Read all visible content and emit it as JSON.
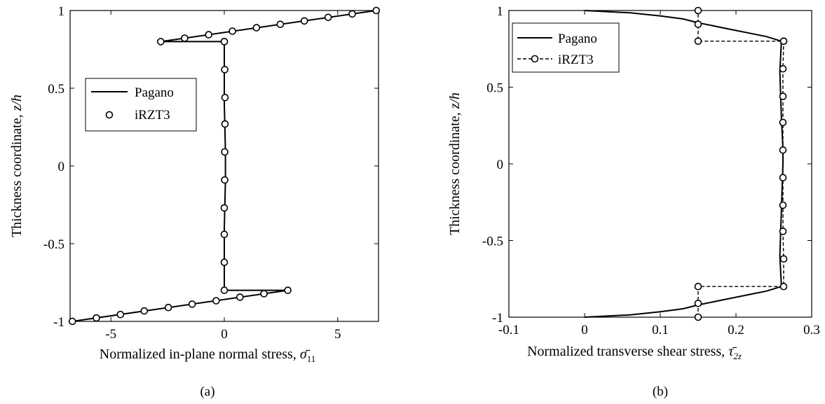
{
  "chart_data": [
    {
      "type": "line",
      "panel_caption": "(a)",
      "xlabel": "Normalized in-plane normal stress,",
      "xlabel_symbol": "σ̄",
      "xlabel_subscript": "11",
      "ylabel": "Thickness coordinate,",
      "ylabel_symbol": "z/h",
      "xlim": [
        -6.8,
        6.8
      ],
      "ylim": [
        -1,
        1
      ],
      "xticks": [
        -5,
        0,
        5
      ],
      "xtick_labels": [
        "-5",
        "0",
        "5"
      ],
      "yticks": [
        -1,
        -0.5,
        0,
        0.5,
        1
      ],
      "ytick_labels": [
        "-1",
        "-0.5",
        "0",
        "0.5",
        "1"
      ],
      "legend": {
        "position": "upper-left",
        "entries": [
          "Pagano",
          "iRZT3"
        ]
      },
      "series": [
        {
          "name": "Pagano",
          "style": "solid",
          "x": [
            -6.7,
            2.8,
            0.0,
            0.0,
            0.05,
            0.05,
            0.0,
            0.0,
            -2.8,
            6.7
          ],
          "y": [
            -1,
            -0.8,
            -0.8,
            -0.4,
            -0.1,
            0.1,
            0.4,
            0.8,
            0.8,
            1
          ]
        },
        {
          "name": "iRZT3",
          "style": "circles",
          "x": [
            -6.7,
            -5.64,
            -4.58,
            -3.53,
            -2.47,
            -1.42,
            -0.36,
            0.69,
            1.75,
            2.8,
            0.0,
            0.0,
            0.0,
            0.0,
            0.02,
            0.02,
            0.03,
            0.03,
            0.02,
            0.0,
            0.0,
            -2.8,
            -1.75,
            -0.69,
            0.36,
            1.42,
            2.47,
            3.53,
            4.58,
            5.64,
            6.7
          ],
          "y": [
            -1,
            -0.978,
            -0.956,
            -0.933,
            -0.911,
            -0.889,
            -0.867,
            -0.844,
            -0.822,
            -0.8,
            -0.8,
            -0.62,
            -0.44,
            -0.27,
            -0.09,
            0.09,
            0.27,
            0.44,
            0.62,
            0.8,
            0.8,
            0.8,
            0.822,
            0.844,
            0.867,
            0.889,
            0.911,
            0.933,
            0.956,
            0.978,
            1
          ]
        }
      ]
    },
    {
      "type": "line",
      "panel_caption": "(b)",
      "xlabel": "Normalized transverse shear stress,",
      "xlabel_symbol": "τ̄",
      "xlabel_subscript": "2z",
      "ylabel": "Thickness coordinate,",
      "ylabel_symbol": "z/h",
      "xlim": [
        -0.1,
        0.3
      ],
      "ylim": [
        -1,
        1
      ],
      "xticks": [
        -0.1,
        0,
        0.1,
        0.2,
        0.3
      ],
      "xtick_labels": [
        "-0.1",
        "0",
        "0.1",
        "0.2",
        "0.3"
      ],
      "yticks": [
        -1,
        -0.5,
        0,
        0.5,
        1
      ],
      "ytick_labels": [
        "-1",
        "-0.5",
        "0",
        "0.5",
        "1"
      ],
      "legend": {
        "position": "upper-left",
        "entries": [
          "Pagano",
          "iRZT3"
        ]
      },
      "series": [
        {
          "name": "Pagano",
          "style": "solid",
          "x": [
            0.0,
            0.06,
            0.1,
            0.13,
            0.15,
            0.18,
            0.2,
            0.22,
            0.24,
            0.26,
            0.258,
            0.26,
            0.262,
            0.262,
            0.26,
            0.258,
            0.26,
            0.24,
            0.22,
            0.2,
            0.18,
            0.15,
            0.13,
            0.1,
            0.06,
            0.0
          ],
          "y": [
            -1,
            -0.985,
            -0.965,
            -0.945,
            -0.92,
            -0.89,
            -0.87,
            -0.85,
            -0.83,
            -0.8,
            -0.6,
            -0.3,
            0.0,
            0.1,
            0.3,
            0.6,
            0.8,
            0.83,
            0.85,
            0.87,
            0.89,
            0.92,
            0.945,
            0.965,
            0.985,
            1
          ]
        },
        {
          "name": "iRZT3",
          "style": "dashed-circles",
          "x": [
            0.15,
            0.15,
            0.15,
            0.263,
            0.263,
            0.262,
            0.262,
            0.262,
            0.262,
            0.262,
            0.262,
            0.262,
            0.263,
            0.263,
            0.15,
            0.15,
            0.15
          ],
          "y": [
            -1,
            -0.91,
            -0.8,
            -0.8,
            -0.62,
            -0.44,
            -0.27,
            -0.09,
            0.09,
            0.27,
            0.44,
            0.62,
            0.8,
            0.8,
            0.8,
            0.91,
            1
          ]
        }
      ]
    }
  ]
}
